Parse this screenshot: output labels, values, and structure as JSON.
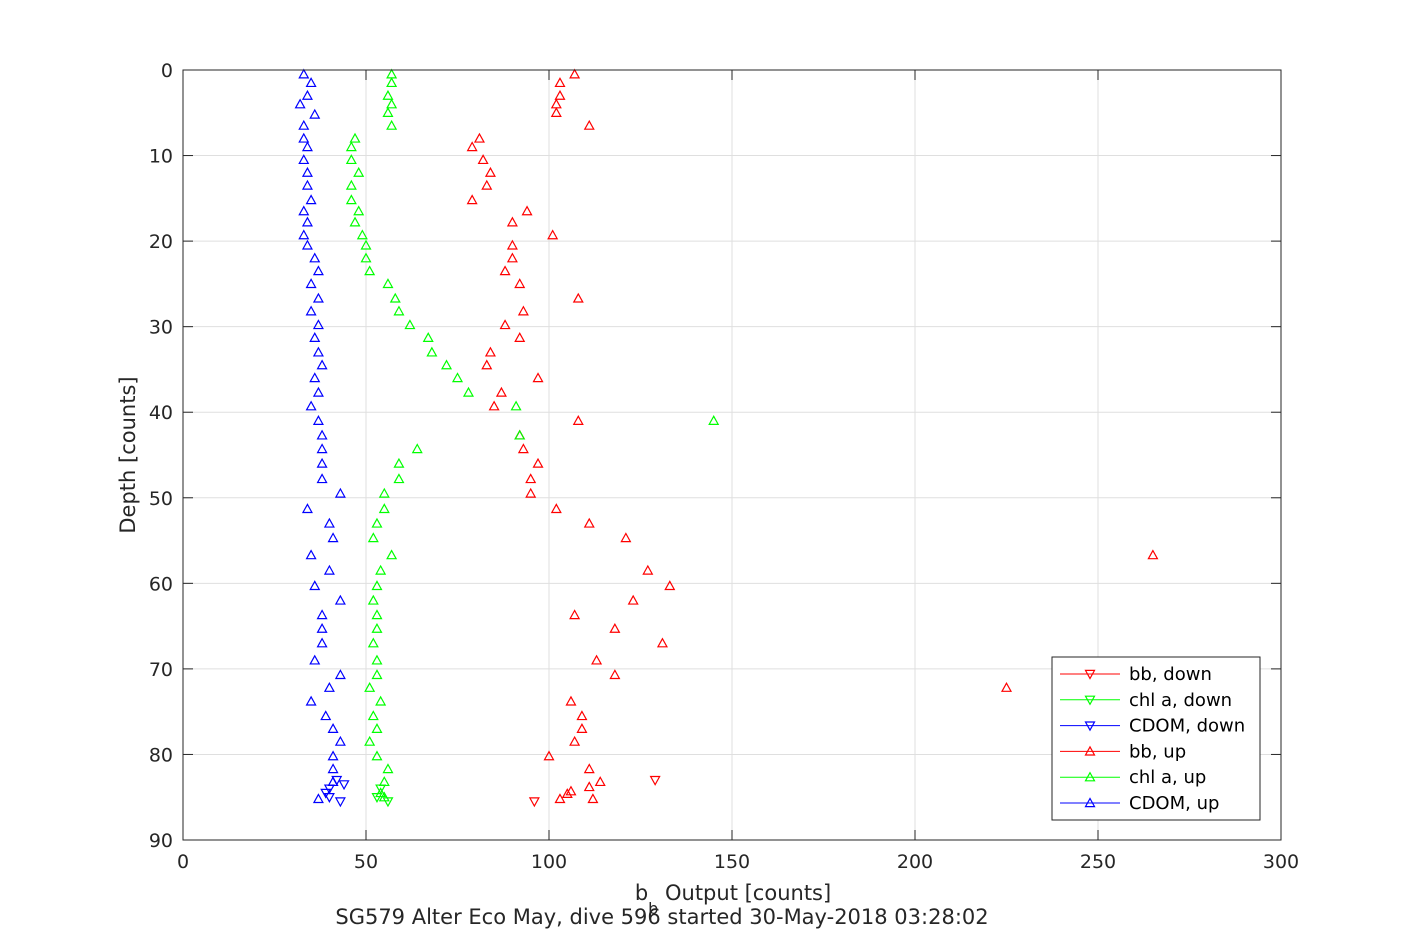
{
  "chart_data": {
    "type": "scatter",
    "xlabel_main": "b",
    "xlabel_sub": "b",
    "xlabel_rest": " Output [counts]",
    "ylabel": "Depth [counts]",
    "caption": "SG579 Alter Eco May, dive 596 started 30-May-2018 03:28:02",
    "xlim": [
      0,
      300
    ],
    "ylim": [
      0,
      90
    ],
    "y_reversed": true,
    "xticks": [
      0,
      50,
      100,
      150,
      200,
      250,
      300
    ],
    "yticks": [
      0,
      10,
      20,
      30,
      40,
      50,
      60,
      70,
      80,
      90
    ],
    "grid": true,
    "legend_position": "bottom-right",
    "series": [
      {
        "name": "bb, down",
        "color": "#ff0000",
        "marker": "triangle-down",
        "points": [
          [
            96,
            85.5
          ],
          [
            129,
            83
          ]
        ]
      },
      {
        "name": "chl a, down",
        "color": "#00ff00",
        "marker": "triangle-down",
        "points": [
          [
            53,
            85
          ],
          [
            56,
            85.5
          ],
          [
            54,
            84
          ]
        ]
      },
      {
        "name": "CDOM, down",
        "color": "#0000ff",
        "marker": "triangle-down",
        "points": [
          [
            40,
            85
          ],
          [
            43,
            85.5
          ],
          [
            39,
            84.5
          ],
          [
            42,
            83
          ],
          [
            44,
            83.5
          ],
          [
            40,
            84
          ]
        ]
      },
      {
        "name": "bb, up",
        "color": "#ff0000",
        "marker": "triangle-up",
        "points": [
          [
            107,
            0.5
          ],
          [
            103,
            1.5
          ],
          [
            103,
            3
          ],
          [
            102,
            4
          ],
          [
            102,
            5
          ],
          [
            111,
            6.5
          ],
          [
            81,
            8
          ],
          [
            79,
            9
          ],
          [
            82,
            10.5
          ],
          [
            84,
            12
          ],
          [
            83,
            13.5
          ],
          [
            79,
            15.2
          ],
          [
            94,
            16.5
          ],
          [
            90,
            17.8
          ],
          [
            101,
            19.3
          ],
          [
            90,
            20.5
          ],
          [
            90,
            22
          ],
          [
            88,
            23.5
          ],
          [
            92,
            25
          ],
          [
            108,
            26.7
          ],
          [
            93,
            28.2
          ],
          [
            88,
            29.8
          ],
          [
            92,
            31.3
          ],
          [
            84,
            33
          ],
          [
            83,
            34.5
          ],
          [
            97,
            36
          ],
          [
            87,
            37.7
          ],
          [
            85,
            39.3
          ],
          [
            108,
            41
          ],
          [
            92,
            42.7
          ],
          [
            93,
            44.3
          ],
          [
            97,
            46
          ],
          [
            95,
            47.8
          ],
          [
            95,
            49.5
          ],
          [
            102,
            51.3
          ],
          [
            111,
            53
          ],
          [
            121,
            54.7
          ],
          [
            265,
            56.7
          ],
          [
            127,
            58.5
          ],
          [
            133,
            60.3
          ],
          [
            123,
            62
          ],
          [
            107,
            63.7
          ],
          [
            118,
            65.3
          ],
          [
            131,
            67
          ],
          [
            113,
            69
          ],
          [
            118,
            70.7
          ],
          [
            225,
            72.2
          ],
          [
            106,
            73.8
          ],
          [
            109,
            75.5
          ],
          [
            109,
            77
          ],
          [
            107,
            78.5
          ],
          [
            100,
            80.2
          ],
          [
            111,
            81.7
          ],
          [
            114,
            83.2
          ],
          [
            111,
            83.8
          ],
          [
            106,
            84.3
          ],
          [
            105,
            84.6
          ],
          [
            103,
            85.2
          ],
          [
            112,
            85.2
          ]
        ]
      },
      {
        "name": "chl a, up",
        "color": "#00ff00",
        "marker": "triangle-up",
        "points": [
          [
            57,
            0.5
          ],
          [
            57,
            1.5
          ],
          [
            56,
            3
          ],
          [
            57,
            4
          ],
          [
            56,
            5
          ],
          [
            57,
            6.5
          ],
          [
            47,
            8
          ],
          [
            46,
            9
          ],
          [
            46,
            10.5
          ],
          [
            48,
            12
          ],
          [
            46,
            13.5
          ],
          [
            46,
            15.2
          ],
          [
            48,
            16.5
          ],
          [
            47,
            17.8
          ],
          [
            49,
            19.3
          ],
          [
            50,
            20.5
          ],
          [
            50,
            22
          ],
          [
            51,
            23.5
          ],
          [
            56,
            25
          ],
          [
            58,
            26.7
          ],
          [
            59,
            28.2
          ],
          [
            62,
            29.8
          ],
          [
            67,
            31.3
          ],
          [
            68,
            33
          ],
          [
            72,
            34.5
          ],
          [
            75,
            36
          ],
          [
            78,
            37.7
          ],
          [
            91,
            39.3
          ],
          [
            145,
            41
          ],
          [
            92,
            42.7
          ],
          [
            64,
            44.3
          ],
          [
            59,
            46
          ],
          [
            59,
            47.8
          ],
          [
            55,
            49.5
          ],
          [
            55,
            51.3
          ],
          [
            53,
            53
          ],
          [
            52,
            54.7
          ],
          [
            57,
            56.7
          ],
          [
            54,
            58.5
          ],
          [
            53,
            60.3
          ],
          [
            52,
            62
          ],
          [
            53,
            63.7
          ],
          [
            53,
            65.3
          ],
          [
            52,
            67
          ],
          [
            53,
            69
          ],
          [
            53,
            70.7
          ],
          [
            51,
            72.2
          ],
          [
            54,
            73.8
          ],
          [
            52,
            75.5
          ],
          [
            53,
            77
          ],
          [
            51,
            78.5
          ],
          [
            53,
            80.2
          ],
          [
            56,
            81.7
          ],
          [
            55,
            83.2
          ],
          [
            54,
            84.5
          ],
          [
            55,
            85
          ]
        ]
      },
      {
        "name": "CDOM, up",
        "color": "#0000ff",
        "marker": "triangle-up",
        "points": [
          [
            33,
            0.5
          ],
          [
            35,
            1.5
          ],
          [
            34,
            3
          ],
          [
            32,
            4
          ],
          [
            36,
            5.2
          ],
          [
            33,
            6.5
          ],
          [
            33,
            8
          ],
          [
            34,
            9
          ],
          [
            33,
            10.5
          ],
          [
            34,
            12
          ],
          [
            34,
            13.5
          ],
          [
            35,
            15.2
          ],
          [
            33,
            16.5
          ],
          [
            34,
            17.8
          ],
          [
            33,
            19.3
          ],
          [
            34,
            20.5
          ],
          [
            36,
            22
          ],
          [
            37,
            23.5
          ],
          [
            35,
            25
          ],
          [
            37,
            26.7
          ],
          [
            35,
            28.2
          ],
          [
            37,
            29.8
          ],
          [
            36,
            31.3
          ],
          [
            37,
            33
          ],
          [
            38,
            34.5
          ],
          [
            36,
            36
          ],
          [
            37,
            37.7
          ],
          [
            35,
            39.3
          ],
          [
            37,
            41
          ],
          [
            38,
            42.7
          ],
          [
            38,
            44.3
          ],
          [
            38,
            46
          ],
          [
            38,
            47.8
          ],
          [
            43,
            49.5
          ],
          [
            34,
            51.3
          ],
          [
            40,
            53
          ],
          [
            41,
            54.7
          ],
          [
            35,
            56.7
          ],
          [
            40,
            58.5
          ],
          [
            36,
            60.3
          ],
          [
            43,
            62
          ],
          [
            38,
            63.7
          ],
          [
            38,
            65.3
          ],
          [
            38,
            67
          ],
          [
            36,
            69
          ],
          [
            43,
            70.7
          ],
          [
            40,
            72.2
          ],
          [
            35,
            73.8
          ],
          [
            39,
            75.5
          ],
          [
            41,
            77
          ],
          [
            43,
            78.5
          ],
          [
            41,
            80.2
          ],
          [
            41,
            81.7
          ],
          [
            41,
            83.2
          ],
          [
            37,
            85.2
          ]
        ]
      }
    ]
  }
}
